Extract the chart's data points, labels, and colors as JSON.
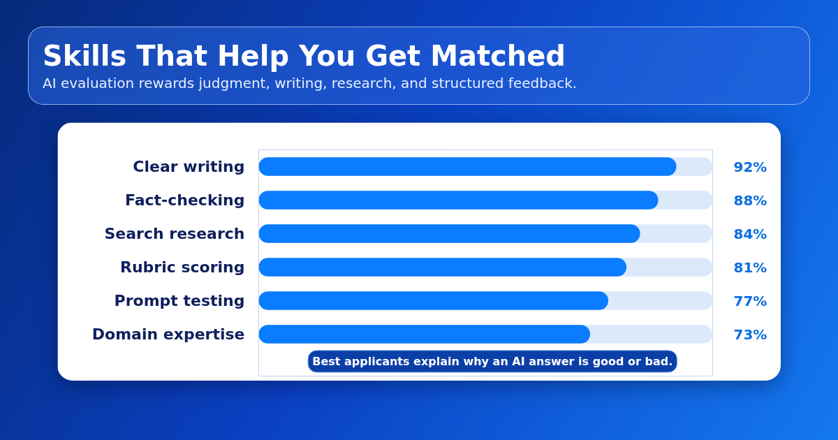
{
  "chart_data": {
    "type": "bar",
    "orientation": "horizontal",
    "title": "Skills That Help You Get Matched",
    "subtitle": "AI evaluation rewards judgment, writing, research, and structured feedback.",
    "categories": [
      "Clear writing",
      "Fact-checking",
      "Search research",
      "Rubric scoring",
      "Prompt testing",
      "Domain expertise"
    ],
    "values": [
      92,
      88,
      84,
      81,
      77,
      73
    ],
    "value_labels": [
      "92%",
      "88%",
      "84%",
      "81%",
      "77%",
      "73%"
    ],
    "color": "#0a7cff",
    "xlim": [
      0,
      100
    ],
    "tick_labels": "y",
    "grid": false,
    "annotations": [
      "Best applicants explain why an AI answer is good or bad."
    ]
  }
}
